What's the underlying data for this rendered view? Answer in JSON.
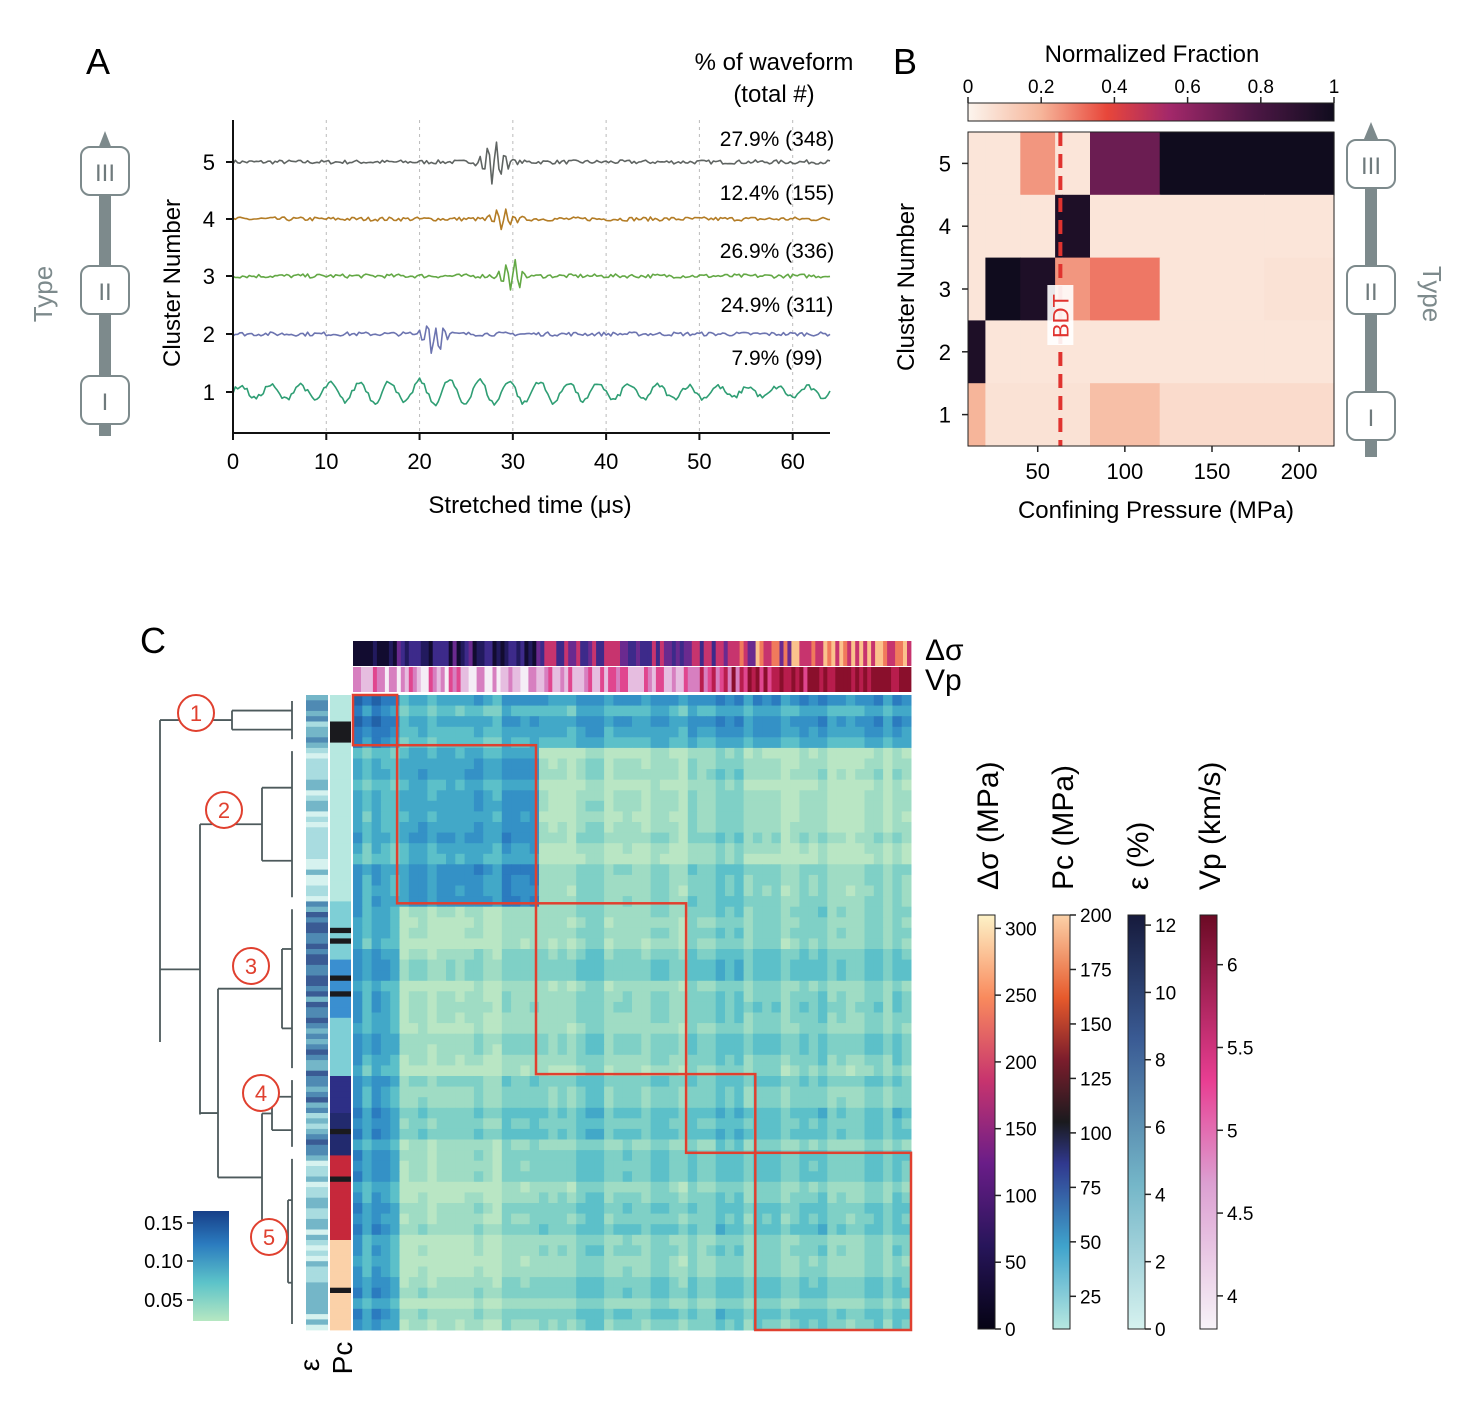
{
  "panels": {
    "a": "A",
    "b": "B",
    "c": "C"
  },
  "chart_data": [
    {
      "id": "A",
      "type": "line",
      "xlabel": "Stretched time (μs)",
      "ylabel": "Cluster Number",
      "xlim": [
        0,
        64
      ],
      "x_ticks": [
        "0",
        "10",
        "20",
        "30",
        "40",
        "50",
        "60"
      ],
      "y_ticks": [
        "1",
        "2",
        "3",
        "4",
        "5"
      ],
      "header_line1": "% of waveform",
      "header_line2": "(total #)",
      "type_axis": {
        "label": "Type",
        "marks": [
          "III",
          "II",
          "I"
        ]
      },
      "series": [
        {
          "cluster": "5",
          "annotation": "27.9% (348)",
          "color": "#5f6462",
          "event_us": 28
        },
        {
          "cluster": "4",
          "annotation": "12.4% (155)",
          "color": "#b37c25",
          "event_us": 29
        },
        {
          "cluster": "3",
          "annotation": "26.9% (336)",
          "color": "#63a845",
          "event_us": 30
        },
        {
          "cluster": "2",
          "annotation": "24.9% (311)",
          "color": "#6c74b0",
          "event_us": 21.5
        },
        {
          "cluster": "1",
          "annotation": "7.9% (99)",
          "color": "#2f9e74",
          "event_us": 0
        }
      ]
    },
    {
      "id": "B",
      "type": "heatmap",
      "title": "Normalized Fraction",
      "xlabel": "Confining Pressure (MPa)",
      "ylabel": "Cluster Number",
      "colorbar_ticks": [
        "0",
        "0.2",
        "0.4",
        "0.6",
        "0.8",
        "1"
      ],
      "x_ticks": [
        "50",
        "100",
        "150",
        "200"
      ],
      "y_ticks": [
        "1",
        "2",
        "3",
        "4",
        "5"
      ],
      "xlim": [
        10,
        220
      ],
      "bdt_label": "BDT",
      "bdt_pressure": 63,
      "type_axis": {
        "label": "Type",
        "marks": [
          "III",
          "II",
          "I"
        ]
      },
      "x_bins": [
        [
          10,
          20
        ],
        [
          20,
          40
        ],
        [
          40,
          60
        ],
        [
          60,
          64
        ],
        [
          64,
          80
        ],
        [
          80,
          120
        ],
        [
          120,
          180
        ],
        [
          180,
          220
        ]
      ],
      "rows": [
        {
          "cluster": 5,
          "values": [
            0.05,
            0.05,
            0.25,
            0.05,
            0.05,
            0.7,
            1.0,
            1.0
          ]
        },
        {
          "cluster": 4,
          "values": [
            0.05,
            0.05,
            0.05,
            0.95,
            0.95,
            0.05,
            0.05,
            0.05
          ]
        },
        {
          "cluster": 3,
          "values": [
            0.05,
            1.0,
            0.95,
            0.25,
            0.25,
            0.3,
            0.05,
            0.06
          ]
        },
        {
          "cluster": 2,
          "values": [
            0.95,
            0.05,
            0.05,
            0.05,
            0.05,
            0.05,
            0.05,
            0.05
          ]
        },
        {
          "cluster": 1,
          "values": [
            0.2,
            0.06,
            0.06,
            0.06,
            0.06,
            0.17,
            0.08,
            0.08
          ]
        }
      ]
    },
    {
      "id": "C",
      "type": "heatmap",
      "cluster_labels": [
        "1",
        "2",
        "3",
        "4",
        "5"
      ],
      "cluster_shares": [
        0.079,
        0.249,
        0.269,
        0.124,
        0.279
      ],
      "top_bars": [
        "Δσ",
        "Vp"
      ],
      "side_bars": [
        "ε",
        "Pc"
      ],
      "matrix_colorbar_ticks": [
        "0.15",
        "0.10",
        "0.05"
      ],
      "colorbars": [
        {
          "label": "Δσ (MPa)",
          "ticks": [
            "0",
            "50",
            "100",
            "150",
            "200",
            "250",
            "300"
          ],
          "range": [
            0,
            310
          ]
        },
        {
          "label": "Pc (MPa)",
          "ticks": [
            "25",
            "50",
            "75",
            "100",
            "125",
            "150",
            "175",
            "200"
          ],
          "range": [
            10,
            200
          ]
        },
        {
          "label": "ε (%)",
          "ticks": [
            "0",
            "2",
            "4",
            "6",
            "8",
            "10",
            "12"
          ],
          "range": [
            0,
            12.3
          ]
        },
        {
          "label": "Vp (km/s)",
          "ticks": [
            "4",
            "4.5",
            "5",
            "5.5",
            "6"
          ],
          "range": [
            3.8,
            6.3
          ]
        }
      ]
    }
  ]
}
